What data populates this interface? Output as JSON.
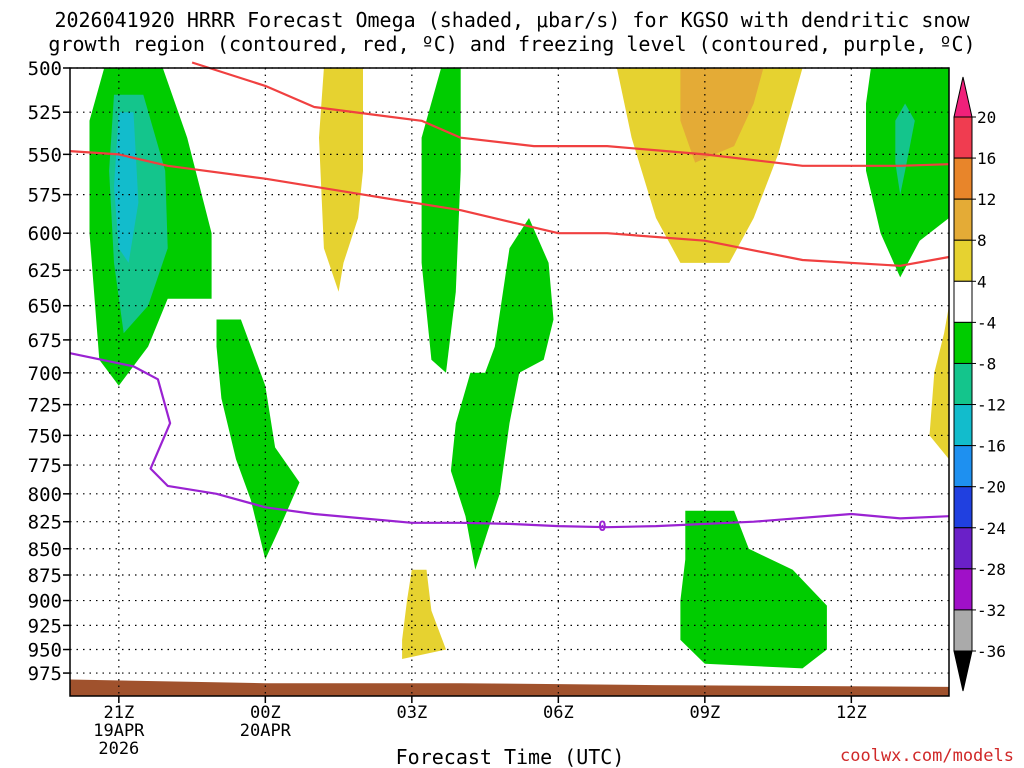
{
  "chart_data": {
    "type": "heatmap",
    "title_lines": [
      "2026041920 HRRR Forecast Omega (shaded, μbar/s) for KGSO with dendritic snow",
      "growth region (contoured, red, ºC) and freezing level (contoured, purple, ºC)"
    ],
    "xlabel": "Forecast Time (UTC)",
    "ylabel": "",
    "credit": "coolwx.com/models",
    "y_axis": {
      "range": [
        500,
        1000
      ],
      "ticks": [
        500,
        525,
        550,
        575,
        600,
        625,
        650,
        675,
        700,
        725,
        750,
        775,
        800,
        825,
        850,
        875,
        900,
        925,
        950,
        975
      ]
    },
    "x_axis": {
      "range_hours": [
        -1,
        17
      ],
      "ticks": [
        {
          "hour": 0,
          "label": "21Z",
          "sub": [
            "19APR",
            "2026"
          ]
        },
        {
          "hour": 3,
          "label": "00Z",
          "sub": [
            "20APR"
          ]
        },
        {
          "hour": 6,
          "label": "03Z",
          "sub": []
        },
        {
          "hour": 9,
          "label": "06Z",
          "sub": []
        },
        {
          "hour": 12,
          "label": "09Z",
          "sub": []
        },
        {
          "hour": 15,
          "label": "12Z",
          "sub": []
        }
      ]
    },
    "colorbar": {
      "labels": [
        "20",
        "16",
        "12",
        "8",
        "4",
        "-4",
        "-8",
        "-12",
        "-16",
        "-20",
        "-24",
        "-28",
        "-32",
        "-36"
      ],
      "bins": [
        {
          "from": 16,
          "to": 20,
          "color": "#f03c50"
        },
        {
          "from": 12,
          "to": 16,
          "color": "#e8852a"
        },
        {
          "from": 8,
          "to": 12,
          "color": "#e4ab36"
        },
        {
          "from": 4,
          "to": 8,
          "color": "#e6d230"
        },
        {
          "from": -4,
          "to": 4,
          "color": "#ffffff"
        },
        {
          "from": -8,
          "to": -4,
          "color": "#00cc00"
        },
        {
          "from": -12,
          "to": -8,
          "color": "#14c58c"
        },
        {
          "from": -16,
          "to": -12,
          "color": "#12bccc"
        },
        {
          "from": -20,
          "to": -16,
          "color": "#1e90f0"
        },
        {
          "from": -24,
          "to": -20,
          "color": "#2040e0"
        },
        {
          "from": -28,
          "to": -24,
          "color": "#6a20c8"
        },
        {
          "from": -32,
          "to": -28,
          "color": "#a010c8"
        },
        {
          "from": -36,
          "to": -32,
          "color": "#aaaaaa"
        }
      ],
      "top_color": "#f0207a",
      "bottom_color": "#000000"
    },
    "shaded_regions": [
      {
        "name": "omega-neg8-region-a",
        "level": -8,
        "color": "#00cc00",
        "points": [
          [
            -0.3,
            500
          ],
          [
            0.9,
            500
          ],
          [
            1.4,
            540
          ],
          [
            1.9,
            600
          ],
          [
            1.9,
            645
          ],
          [
            1.0,
            645
          ],
          [
            0.6,
            680
          ],
          [
            0.0,
            710
          ],
          [
            -0.4,
            690
          ],
          [
            -0.6,
            600
          ],
          [
            -0.6,
            530
          ]
        ]
      },
      {
        "name": "omega-neg12-region-a",
        "level": -12,
        "color": "#14c58c",
        "points": [
          [
            -0.1,
            515
          ],
          [
            0.5,
            515
          ],
          [
            0.95,
            560
          ],
          [
            1.0,
            610
          ],
          [
            0.6,
            650
          ],
          [
            0.1,
            670
          ],
          [
            -0.1,
            620
          ],
          [
            -0.2,
            560
          ]
        ]
      },
      {
        "name": "omega-neg16-region-a",
        "level": -16,
        "color": "#12bccc",
        "points": [
          [
            0.0,
            525
          ],
          [
            0.3,
            525
          ],
          [
            0.4,
            580
          ],
          [
            0.2,
            620
          ],
          [
            0.0,
            610
          ],
          [
            -0.1,
            570
          ]
        ]
      },
      {
        "name": "omega-pos4-region-a",
        "level": 4,
        "color": "#e6d230",
        "points": [
          [
            4.2,
            500
          ],
          [
            5.0,
            500
          ],
          [
            5.0,
            560
          ],
          [
            4.9,
            590
          ],
          [
            4.6,
            620
          ],
          [
            4.5,
            640
          ],
          [
            4.2,
            610
          ],
          [
            4.1,
            540
          ]
        ]
      },
      {
        "name": "omega-neg4-region-b",
        "level": -4,
        "color": "#00cc00",
        "points": [
          [
            2.0,
            660
          ],
          [
            2.5,
            660
          ],
          [
            3.0,
            710
          ],
          [
            3.2,
            760
          ],
          [
            3.7,
            790
          ],
          [
            3.3,
            830
          ],
          [
            3.0,
            860
          ],
          [
            2.7,
            805
          ],
          [
            2.4,
            770
          ],
          [
            2.1,
            720
          ],
          [
            2.0,
            680
          ]
        ]
      },
      {
        "name": "omega-neg4-region-c",
        "level": -4,
        "color": "#00cc00",
        "points": [
          [
            6.6,
            500
          ],
          [
            7.0,
            500
          ],
          [
            7.0,
            560
          ],
          [
            6.9,
            640
          ],
          [
            6.7,
            700
          ],
          [
            6.4,
            690
          ],
          [
            6.2,
            620
          ],
          [
            6.2,
            540
          ]
        ]
      },
      {
        "name": "omega-neg4-region-d",
        "level": -4,
        "color": "#00cc00",
        "points": [
          [
            8.0,
            610
          ],
          [
            8.4,
            590
          ],
          [
            8.8,
            620
          ],
          [
            8.9,
            660
          ],
          [
            8.7,
            690
          ],
          [
            8.2,
            700
          ],
          [
            8.0,
            740
          ],
          [
            7.8,
            800
          ],
          [
            7.3,
            870
          ],
          [
            7.1,
            820
          ],
          [
            6.8,
            780
          ],
          [
            6.9,
            740
          ],
          [
            7.2,
            700
          ],
          [
            7.5,
            700
          ],
          [
            7.7,
            680
          ]
        ]
      },
      {
        "name": "omega-pos4-region-e",
        "level": 4,
        "color": "#e6d230",
        "points": [
          [
            10.2,
            500
          ],
          [
            14.0,
            500
          ],
          [
            13.5,
            550
          ],
          [
            13.0,
            590
          ],
          [
            12.5,
            620
          ],
          [
            11.5,
            620
          ],
          [
            11.0,
            590
          ],
          [
            10.5,
            540
          ]
        ]
      },
      {
        "name": "omega-pos8-region-e",
        "level": 8,
        "color": "#e4ab36",
        "points": [
          [
            11.5,
            500
          ],
          [
            13.2,
            500
          ],
          [
            13.0,
            520
          ],
          [
            12.6,
            545
          ],
          [
            11.8,
            555
          ],
          [
            11.5,
            530
          ]
        ]
      },
      {
        "name": "omega-neg4-region-f",
        "level": -4,
        "color": "#00cc00",
        "points": [
          [
            11.6,
            815
          ],
          [
            12.6,
            815
          ],
          [
            12.9,
            850
          ],
          [
            13.8,
            870
          ],
          [
            14.5,
            905
          ],
          [
            14.5,
            950
          ],
          [
            14.0,
            970
          ],
          [
            12.0,
            965
          ],
          [
            11.5,
            940
          ],
          [
            11.5,
            900
          ],
          [
            11.6,
            860
          ]
        ]
      },
      {
        "name": "omega-pos4-region-g",
        "level": 4,
        "color": "#e6d230",
        "points": [
          [
            6.0,
            870
          ],
          [
            6.3,
            870
          ],
          [
            6.4,
            910
          ],
          [
            6.7,
            950
          ],
          [
            5.8,
            960
          ],
          [
            5.8,
            940
          ],
          [
            5.9,
            900
          ]
        ]
      },
      {
        "name": "omega-neg4-region-h",
        "level": -4,
        "color": "#00cc00",
        "points": [
          [
            15.4,
            500
          ],
          [
            17.0,
            500
          ],
          [
            17.0,
            590
          ],
          [
            16.4,
            605
          ],
          [
            16.0,
            630
          ],
          [
            15.6,
            600
          ],
          [
            15.3,
            560
          ],
          [
            15.3,
            520
          ]
        ]
      },
      {
        "name": "omega-neg12-region-h",
        "level": -12,
        "color": "#14c58c",
        "points": [
          [
            16.1,
            520
          ],
          [
            16.3,
            530
          ],
          [
            16.1,
            560
          ],
          [
            16.0,
            575
          ],
          [
            15.9,
            555
          ],
          [
            15.9,
            530
          ]
        ]
      },
      {
        "name": "omega-pos4-region-i",
        "level": 4,
        "color": "#e6d230",
        "points": [
          [
            17.0,
            650
          ],
          [
            17.0,
            770
          ],
          [
            16.6,
            750
          ],
          [
            16.7,
            700
          ],
          [
            16.9,
            670
          ]
        ]
      }
    ],
    "contours": [
      {
        "name": "dendritic-upper-line",
        "color": "#f04040",
        "points": [
          [
            1.5,
            497
          ],
          [
            3.0,
            510
          ],
          [
            4.0,
            522
          ],
          [
            6.2,
            530
          ],
          [
            7.0,
            540
          ],
          [
            8.5,
            545
          ],
          [
            10.0,
            545
          ],
          [
            12.0,
            550
          ],
          [
            14.0,
            557
          ],
          [
            16.0,
            557
          ],
          [
            17.0,
            556
          ]
        ]
      },
      {
        "name": "dendritic-lower-line",
        "color": "#f04040",
        "points": [
          [
            -1.0,
            548
          ],
          [
            0.0,
            550
          ],
          [
            1.0,
            557
          ],
          [
            3.0,
            565
          ],
          [
            5.0,
            575
          ],
          [
            7.0,
            585
          ],
          [
            9.0,
            600
          ],
          [
            10.0,
            600
          ],
          [
            12.0,
            605
          ],
          [
            14.0,
            618
          ],
          [
            16.0,
            622
          ],
          [
            17.0,
            616
          ]
        ]
      },
      {
        "name": "freezing-level-line",
        "color": "#9a22d2",
        "points": [
          [
            -1.0,
            685
          ],
          [
            0.3,
            695
          ],
          [
            0.8,
            705
          ],
          [
            1.05,
            740
          ],
          [
            0.65,
            778
          ],
          [
            1.0,
            793
          ],
          [
            2.0,
            800
          ],
          [
            3.0,
            812
          ],
          [
            4.0,
            818
          ],
          [
            6.0,
            826
          ],
          [
            7.0,
            826
          ],
          [
            8.0,
            827
          ],
          [
            9.0,
            829
          ],
          [
            10.0,
            830
          ],
          [
            11.0,
            829
          ],
          [
            13.0,
            825
          ],
          [
            15.0,
            818
          ],
          [
            16.0,
            822
          ],
          [
            17.0,
            820
          ]
        ]
      }
    ],
    "contour_labels": [
      {
        "name": "freezing-level-label",
        "text": "0",
        "hour": 9.9,
        "pressure": 829,
        "color": "#9a22d2"
      }
    ],
    "terrain": {
      "color": "#a0522d",
      "points": [
        [
          -1.0,
          982
        ],
        [
          1.0,
          984
        ],
        [
          3.0,
          986
        ],
        [
          7.0,
          986
        ],
        [
          11.0,
          988
        ],
        [
          17.0,
          990
        ]
      ]
    }
  }
}
